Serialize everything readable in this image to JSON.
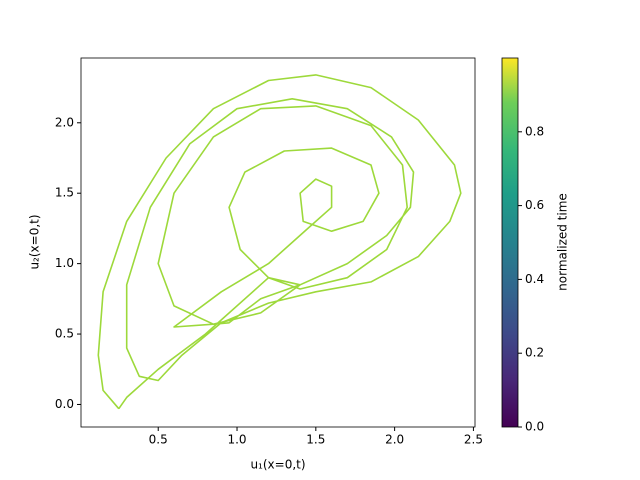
{
  "chart_data": {
    "type": "line",
    "xlabel": "u₁(x=0,t)",
    "ylabel": "u₂(x=0,t)",
    "xlim": [
      0.01,
      2.51
    ],
    "ylim": [
      -0.16,
      2.46
    ],
    "xticks": [
      0.5,
      {
        "value": 1.0,
        "label": "1.0"
      },
      1.5,
      {
        "value": 2.0,
        "label": "2.0"
      },
      2.5
    ],
    "yticks": [
      {
        "value": 0.0,
        "label": "0.0"
      },
      0.5,
      {
        "value": 1.0,
        "label": "1.0"
      },
      1.5,
      {
        "value": 2.0,
        "label": "2.0"
      }
    ],
    "series": [
      {
        "color": "#9dd93b",
        "x": [
          0.25,
          0.15,
          0.12,
          0.15,
          0.3,
          0.55,
          0.85,
          1.2,
          1.5,
          1.85,
          2.15,
          2.38,
          2.42,
          2.35,
          2.15,
          1.85,
          1.5,
          1.2,
          0.9,
          0.65,
          0.5,
          0.38,
          0.3,
          0.3,
          0.45,
          0.7,
          1.0,
          1.35,
          1.7,
          1.98,
          2.12,
          2.1,
          1.95,
          1.7,
          1.4,
          1.15,
          0.95,
          0.85,
          0.6,
          0.9,
          1.2,
          1.45,
          1.6,
          1.6,
          1.5,
          1.4,
          1.42,
          1.6,
          1.8,
          1.9,
          1.85,
          1.6,
          1.3,
          1.05,
          0.95,
          1.02,
          1.2,
          1.4,
          1.7,
          1.95,
          2.08,
          2.05,
          1.85,
          1.5,
          1.15,
          0.85,
          0.6,
          0.5,
          0.6,
          0.85,
          1.15,
          1.4,
          1.2,
          0.8,
          0.5,
          0.3,
          0.25
        ],
        "y": [
          -0.03,
          0.1,
          0.35,
          0.8,
          1.3,
          1.75,
          2.1,
          2.3,
          2.34,
          2.25,
          2.02,
          1.7,
          1.5,
          1.3,
          1.05,
          0.87,
          0.8,
          0.72,
          0.58,
          0.35,
          0.17,
          0.2,
          0.4,
          0.85,
          1.4,
          1.85,
          2.1,
          2.17,
          2.1,
          1.9,
          1.65,
          1.4,
          1.2,
          1.0,
          0.85,
          0.75,
          0.58,
          0.57,
          0.55,
          0.8,
          1.0,
          1.25,
          1.4,
          1.55,
          1.6,
          1.5,
          1.3,
          1.23,
          1.3,
          1.5,
          1.7,
          1.82,
          1.8,
          1.65,
          1.4,
          1.1,
          0.9,
          0.82,
          0.9,
          1.1,
          1.4,
          1.7,
          1.98,
          2.12,
          2.1,
          1.9,
          1.5,
          1.0,
          0.7,
          0.57,
          0.65,
          0.85,
          0.9,
          0.5,
          0.25,
          0.05,
          -0.03
        ]
      }
    ],
    "colorbar": {
      "label": "normalized time",
      "colormap": "viridis",
      "clim": [
        0,
        1
      ],
      "ticks": [
        {
          "value": 0.0,
          "label": "0.0"
        },
        0.2,
        0.4,
        0.6,
        0.8
      ]
    }
  }
}
